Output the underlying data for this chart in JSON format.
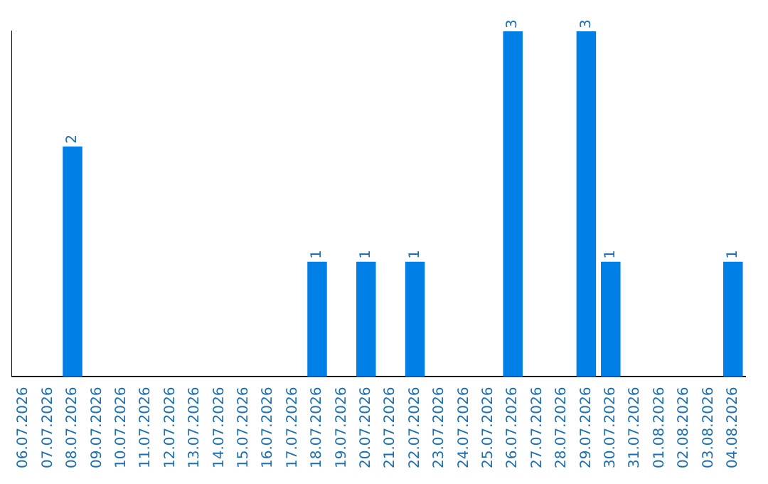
{
  "chart_data": {
    "type": "bar",
    "categories": [
      "06.07.2026",
      "07.07.2026",
      "08.07.2026",
      "09.07.2026",
      "10.07.2026",
      "11.07.2026",
      "12.07.2026",
      "13.07.2026",
      "14.07.2026",
      "15.07.2026",
      "16.07.2026",
      "17.07.2026",
      "18.07.2026",
      "19.07.2026",
      "20.07.2026",
      "21.07.2026",
      "22.07.2026",
      "23.07.2026",
      "24.07.2026",
      "25.07.2026",
      "26.07.2026",
      "27.07.2026",
      "28.07.2026",
      "29.07.2026",
      "30.07.2026",
      "31.07.2026",
      "01.08.2026",
      "02.08.2026",
      "03.08.2026",
      "04.08.2026"
    ],
    "values": [
      0,
      0,
      2,
      0,
      0,
      0,
      0,
      0,
      0,
      0,
      0,
      0,
      1,
      0,
      1,
      0,
      1,
      0,
      0,
      0,
      3,
      0,
      0,
      3,
      1,
      0,
      0,
      0,
      0,
      1
    ],
    "value_labels": [
      null,
      null,
      "2",
      null,
      null,
      null,
      null,
      null,
      null,
      null,
      null,
      null,
      "1",
      null,
      "1",
      null,
      "1",
      null,
      null,
      null,
      "3",
      null,
      null,
      "3",
      "1",
      null,
      null,
      null,
      null,
      "1"
    ],
    "color": "#0080e6",
    "ylim": [
      0,
      3
    ],
    "tick_labels": "x",
    "grid": false,
    "legend": false
  }
}
